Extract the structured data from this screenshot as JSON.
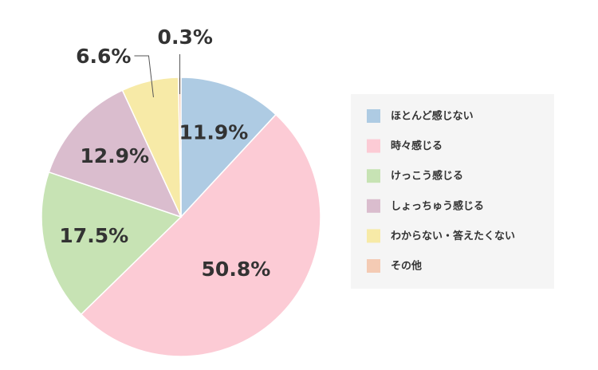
{
  "chart_data": {
    "type": "pie",
    "categories": [
      "ほとんど感じない",
      "時々感じる",
      "けっこう感じる",
      "しょっちゅう感じる",
      "わからない・答えたくない",
      "その他"
    ],
    "values": [
      11.9,
      50.8,
      17.5,
      12.9,
      6.6,
      0.3
    ],
    "value_labels": [
      "11.9%",
      "50.8%",
      "17.5%",
      "12.9%",
      "6.6%",
      "0.3%"
    ],
    "colors": [
      "#aecbe3",
      "#fccbd5",
      "#c7e3b4",
      "#dabdce",
      "#f7eaa7",
      "#f4cbb4"
    ],
    "legend": "right"
  }
}
